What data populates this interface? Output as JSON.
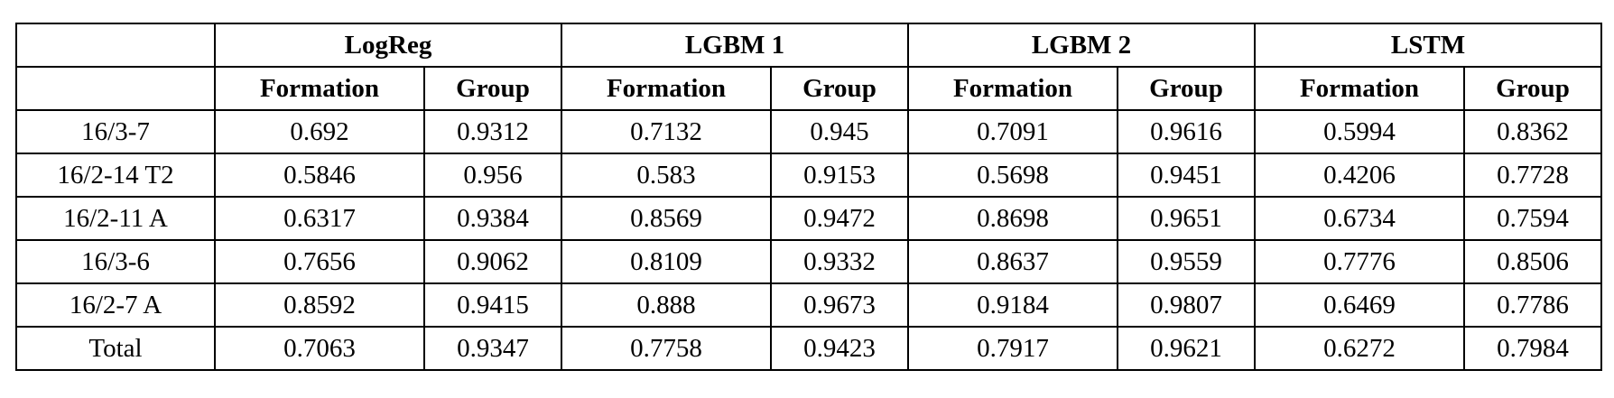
{
  "page": {
    "background": "#ffffff",
    "text_color": "#000000",
    "border_color": "#000000"
  },
  "table": {
    "model_groups": [
      {
        "label": "LogReg",
        "columns": [
          "Formation",
          "Group"
        ]
      },
      {
        "label": "LGBM 1",
        "columns": [
          "Formation",
          "Group"
        ]
      },
      {
        "label": "LGBM 2",
        "columns": [
          "Formation",
          "Group"
        ]
      },
      {
        "label": "LSTM",
        "columns": [
          "Formation",
          "Group"
        ]
      }
    ],
    "rows": [
      {
        "label": "16/3-7",
        "values": [
          "0.692",
          "0.9312",
          "0.7132",
          "0.945",
          "0.7091",
          "0.9616",
          "0.5994",
          "0.8362"
        ]
      },
      {
        "label": "16/2-14 T2",
        "values": [
          "0.5846",
          "0.956",
          "0.583",
          "0.9153",
          "0.5698",
          "0.9451",
          "0.4206",
          "0.7728"
        ]
      },
      {
        "label": "16/2-11 A",
        "values": [
          "0.6317",
          "0.9384",
          "0.8569",
          "0.9472",
          "0.8698",
          "0.9651",
          "0.6734",
          "0.7594"
        ]
      },
      {
        "label": "16/3-6",
        "values": [
          "0.7656",
          "0.9062",
          "0.8109",
          "0.9332",
          "0.8637",
          "0.9559",
          "0.7776",
          "0.8506"
        ]
      },
      {
        "label": "16/2-7 A",
        "values": [
          "0.8592",
          "0.9415",
          "0.888",
          "0.9673",
          "0.9184",
          "0.9807",
          "0.6469",
          "0.7786"
        ]
      },
      {
        "label": "Total",
        "values": [
          "0.7063",
          "0.9347",
          "0.7758",
          "0.9423",
          "0.7917",
          "0.9621",
          "0.6272",
          "0.7984"
        ]
      }
    ]
  }
}
